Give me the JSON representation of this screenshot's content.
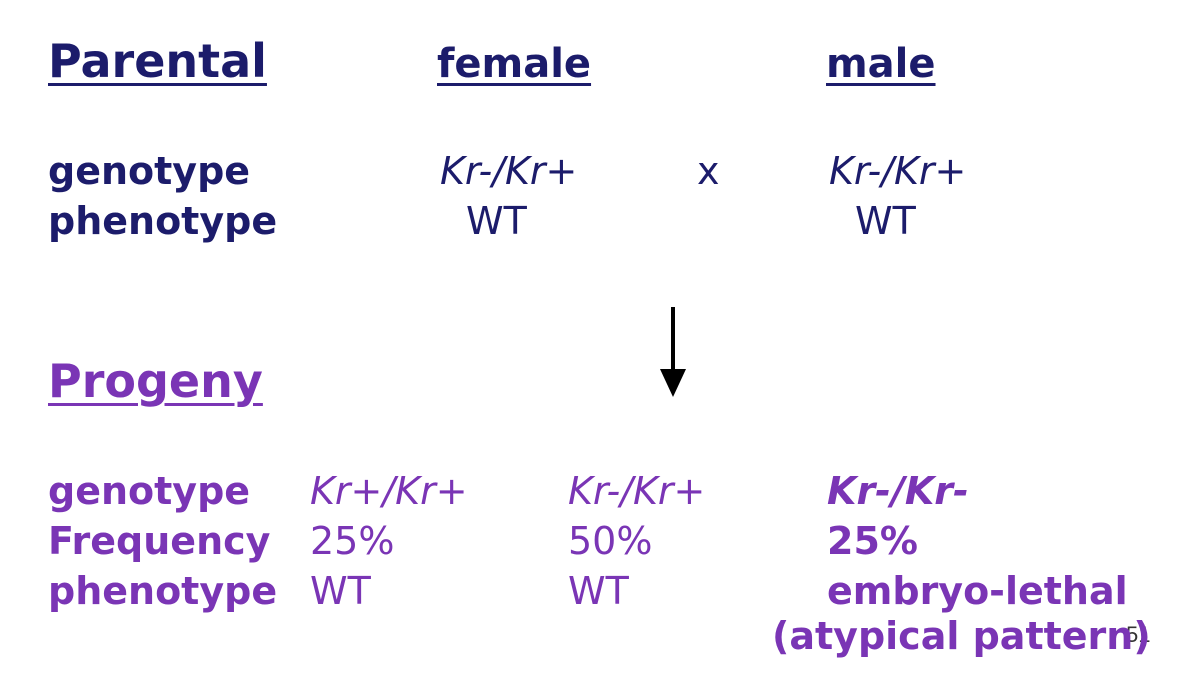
{
  "parental": {
    "heading": "Parental",
    "female_label": "female",
    "male_label": "male",
    "genotype_label": "genotype",
    "female_genotype": "Kr-/Kr+",
    "cross_symbol": "x",
    "male_genotype": "Kr-/Kr+",
    "phenotype_label": "phenotype",
    "female_phenotype": "WT",
    "male_phenotype": "WT"
  },
  "progeny": {
    "heading": "Progeny",
    "genotype_label": "genotype",
    "frequency_label": "Frequency",
    "phenotype_label": "phenotype",
    "columns": [
      {
        "genotype": "Kr+/Kr+",
        "frequency": "25%",
        "phenotype": "WT"
      },
      {
        "genotype": "Kr-/Kr+",
        "frequency": "50%",
        "phenotype": "WT"
      },
      {
        "genotype": "Kr-/Kr-",
        "frequency": "25%",
        "phenotype": "embryo-lethal",
        "note": "(atypical pattern)"
      }
    ]
  },
  "page_number": "51"
}
